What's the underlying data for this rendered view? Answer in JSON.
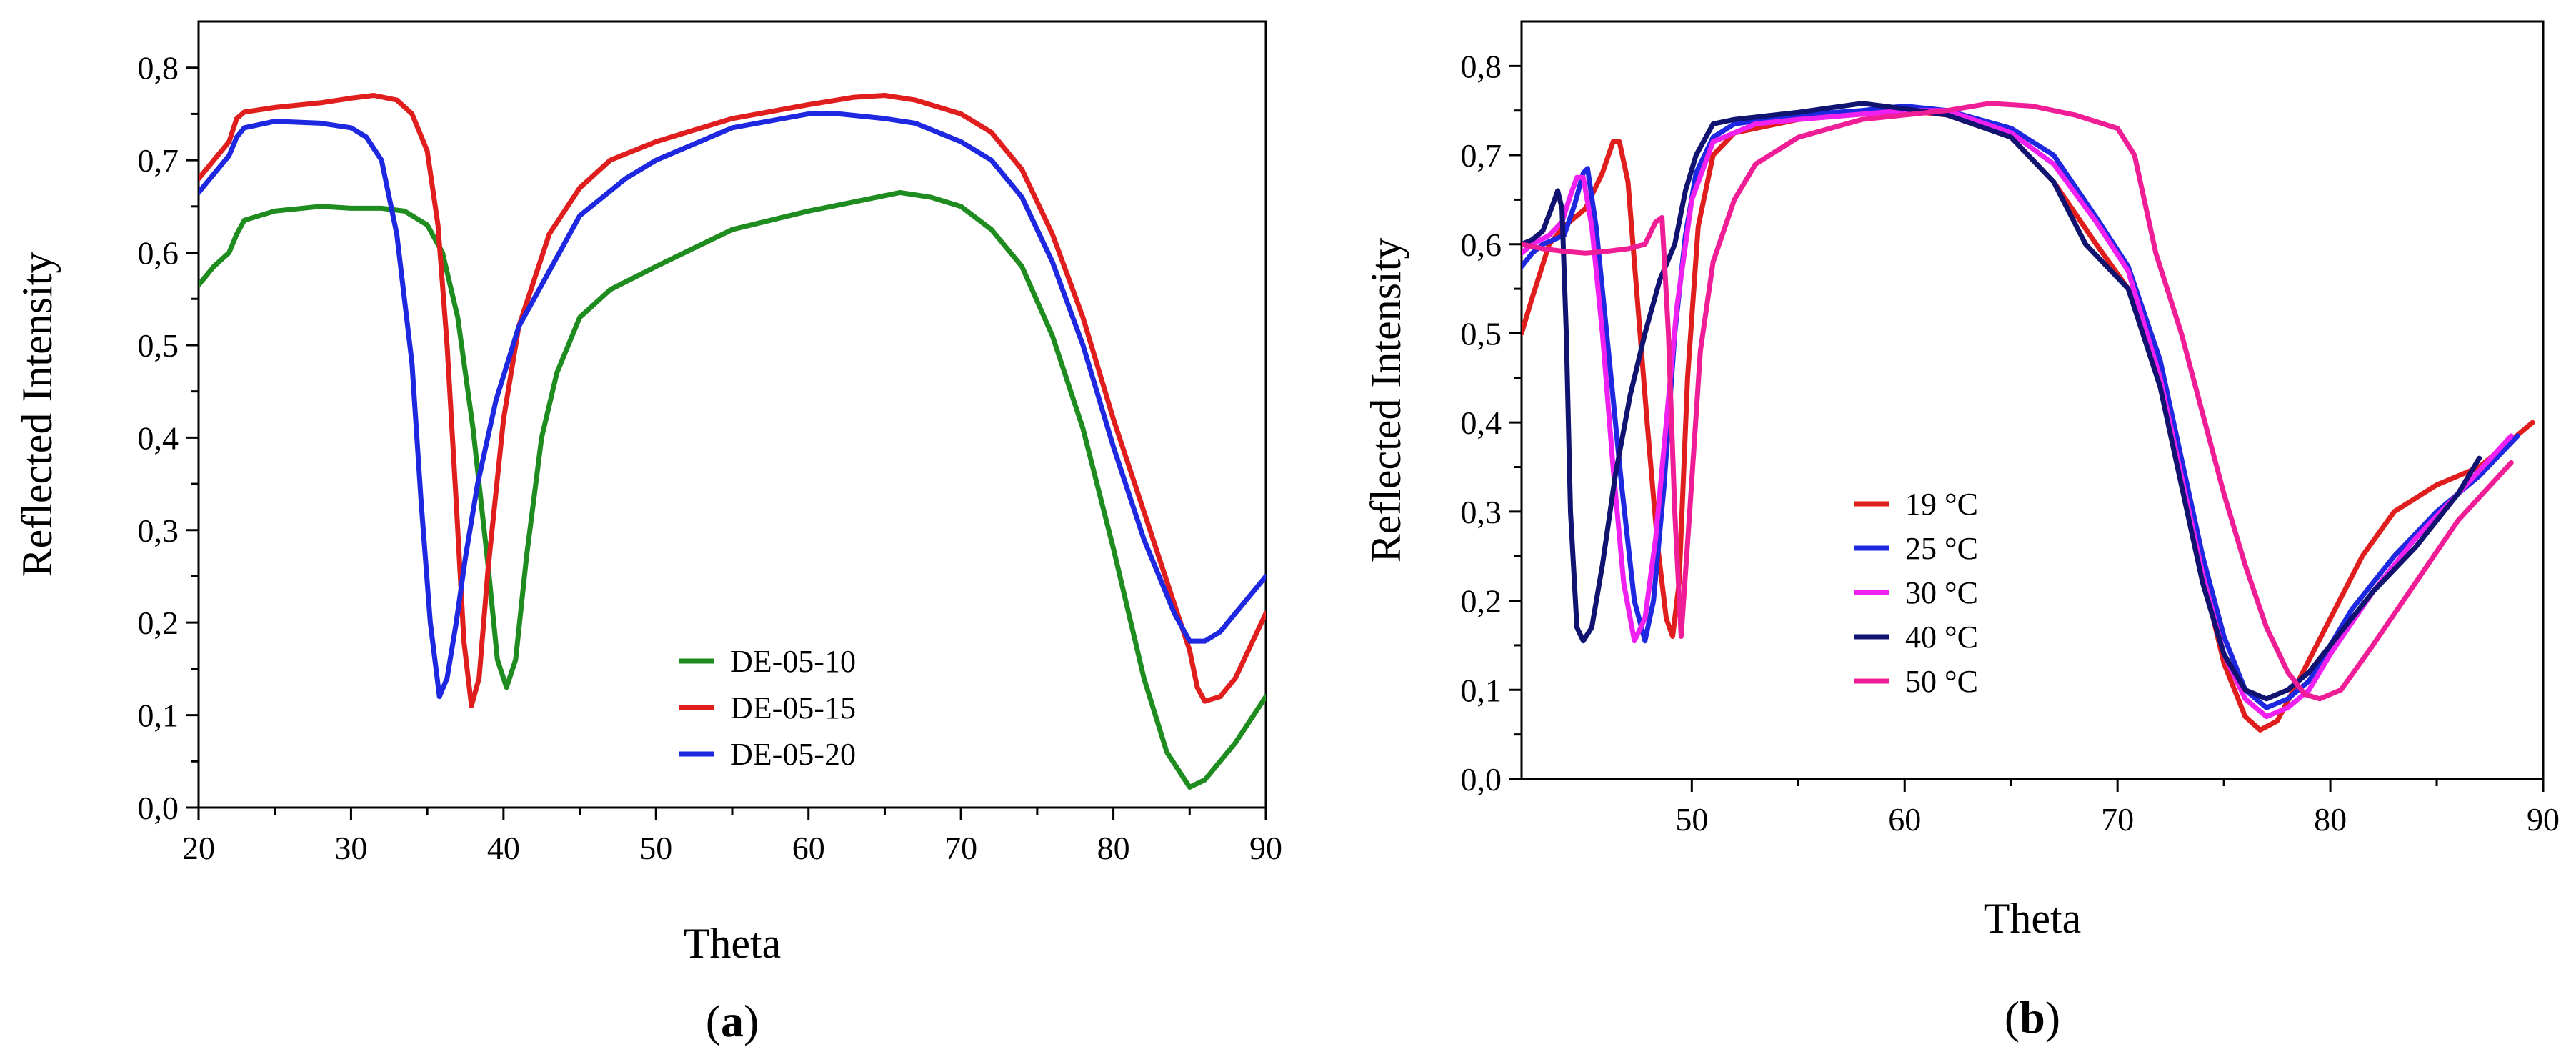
{
  "chart_data": [
    {
      "type": "line",
      "panel_label": "a",
      "xlabel": "Theta",
      "ylabel": "Reflected Intensity",
      "xlim": [
        20,
        90
      ],
      "ylim": [
        0.0,
        0.85
      ],
      "xticks": [
        20,
        30,
        40,
        50,
        60,
        70,
        80,
        90
      ],
      "yticks": [
        "0,0",
        "0,1",
        "0,2",
        "0,3",
        "0,4",
        "0,5",
        "0,6",
        "0,7",
        "0,8"
      ],
      "grid": false,
      "legend_position": "bottom-right",
      "series": [
        {
          "name": "DE-05-10",
          "color": "#1e8c1e",
          "x": [
            20,
            21,
            22,
            22.5,
            23,
            25,
            28,
            30,
            32,
            33.5,
            35,
            36,
            37,
            38,
            39,
            39.6,
            40.2,
            40.8,
            41.5,
            42.5,
            43.5,
            45,
            47,
            50,
            55,
            60,
            63,
            66,
            68,
            70,
            72,
            74,
            76,
            78,
            80,
            82,
            83.5,
            85,
            86,
            88,
            90
          ],
          "y": [
            0.565,
            0.585,
            0.6,
            0.62,
            0.635,
            0.645,
            0.65,
            0.648,
            0.648,
            0.645,
            0.63,
            0.6,
            0.53,
            0.41,
            0.26,
            0.16,
            0.13,
            0.16,
            0.27,
            0.4,
            0.47,
            0.53,
            0.56,
            0.585,
            0.625,
            0.645,
            0.655,
            0.665,
            0.66,
            0.65,
            0.625,
            0.585,
            0.51,
            0.41,
            0.28,
            0.14,
            0.06,
            0.022,
            0.03,
            0.07,
            0.12
          ]
        },
        {
          "name": "DE-05-15",
          "color": "#e01e1e",
          "x": [
            20,
            21,
            22,
            22.5,
            23,
            25,
            28,
            30,
            31.5,
            33,
            34,
            35,
            35.7,
            36.3,
            36.9,
            37.4,
            37.9,
            38.4,
            39,
            40,
            41,
            43,
            45,
            47,
            50,
            55,
            60,
            63,
            65,
            67,
            70,
            72,
            74,
            76,
            78,
            80,
            82,
            84,
            85,
            85.5,
            86,
            87,
            88,
            90
          ],
          "y": [
            0.68,
            0.7,
            0.72,
            0.745,
            0.752,
            0.757,
            0.762,
            0.767,
            0.77,
            0.765,
            0.75,
            0.71,
            0.63,
            0.5,
            0.33,
            0.18,
            0.11,
            0.14,
            0.26,
            0.42,
            0.52,
            0.62,
            0.67,
            0.7,
            0.72,
            0.745,
            0.76,
            0.768,
            0.77,
            0.765,
            0.75,
            0.73,
            0.69,
            0.62,
            0.53,
            0.42,
            0.32,
            0.22,
            0.17,
            0.13,
            0.115,
            0.12,
            0.14,
            0.21
          ]
        },
        {
          "name": "DE-05-20",
          "color": "#1e28e0",
          "x": [
            20,
            21,
            22,
            22.5,
            23,
            25,
            28,
            30,
            31,
            32,
            33,
            34,
            34.6,
            35.2,
            35.8,
            36.3,
            36.9,
            37.5,
            38.3,
            39.5,
            41,
            43,
            45,
            48,
            50,
            55,
            60,
            62,
            65,
            67,
            70,
            72,
            74,
            76,
            78,
            80,
            82,
            84,
            85,
            86,
            87,
            88,
            90
          ],
          "y": [
            0.665,
            0.685,
            0.705,
            0.725,
            0.735,
            0.742,
            0.74,
            0.735,
            0.725,
            0.7,
            0.62,
            0.48,
            0.33,
            0.2,
            0.12,
            0.14,
            0.2,
            0.27,
            0.35,
            0.44,
            0.52,
            0.58,
            0.64,
            0.68,
            0.7,
            0.735,
            0.75,
            0.75,
            0.745,
            0.74,
            0.72,
            0.7,
            0.66,
            0.59,
            0.5,
            0.39,
            0.29,
            0.21,
            0.18,
            0.18,
            0.19,
            0.21,
            0.25
          ]
        }
      ]
    },
    {
      "type": "line",
      "panel_label": "b",
      "xlabel": "Theta",
      "ylabel": "Reflected Intensity",
      "xlim": [
        42,
        90
      ],
      "ylim": [
        0.0,
        0.85
      ],
      "xticks": [
        50,
        60,
        70,
        80,
        90
      ],
      "yticks": [
        "0,0",
        "0,1",
        "0,2",
        "0,3",
        "0,4",
        "0,5",
        "0,6",
        "0,7",
        "0,8"
      ],
      "grid": false,
      "legend_position": "center-left",
      "series": [
        {
          "name": "19 °C",
          "color": "#e01e1e",
          "x": [
            42,
            42.5,
            43.3,
            44,
            45,
            45.8,
            46.3,
            46.6,
            47,
            47.4,
            47.9,
            48.4,
            48.8,
            49.1,
            49.4,
            49.8,
            50.3,
            51,
            52,
            55,
            60,
            62,
            65,
            67,
            69,
            70.5,
            72,
            73,
            74,
            75,
            76,
            76.7,
            77.5,
            78.5,
            80,
            81.5,
            83,
            85,
            87,
            88.5,
            89.5
          ],
          "y": [
            0.5,
            0.54,
            0.6,
            0.62,
            0.64,
            0.68,
            0.715,
            0.715,
            0.67,
            0.55,
            0.4,
            0.26,
            0.18,
            0.16,
            0.22,
            0.45,
            0.62,
            0.7,
            0.725,
            0.74,
            0.75,
            0.745,
            0.72,
            0.67,
            0.6,
            0.55,
            0.45,
            0.34,
            0.23,
            0.13,
            0.07,
            0.055,
            0.065,
            0.11,
            0.18,
            0.25,
            0.3,
            0.33,
            0.35,
            0.38,
            0.4
          ]
        },
        {
          "name": "25 °C",
          "color": "#1e28e0",
          "x": [
            42,
            42.5,
            43,
            44,
            44.5,
            44.9,
            45.1,
            45.5,
            46,
            46.7,
            47.3,
            47.8,
            48.2,
            48.7,
            49.2,
            49.7,
            50.2,
            51,
            52,
            55,
            58,
            60,
            62,
            65,
            67,
            69,
            70.5,
            72,
            73,
            74,
            75,
            76,
            77,
            78,
            79,
            80,
            81,
            83,
            85,
            87,
            88.8
          ],
          "y": [
            0.575,
            0.59,
            0.6,
            0.61,
            0.645,
            0.68,
            0.685,
            0.62,
            0.5,
            0.33,
            0.2,
            0.155,
            0.2,
            0.33,
            0.5,
            0.61,
            0.68,
            0.72,
            0.735,
            0.745,
            0.75,
            0.755,
            0.75,
            0.73,
            0.7,
            0.63,
            0.575,
            0.47,
            0.36,
            0.25,
            0.16,
            0.1,
            0.08,
            0.09,
            0.11,
            0.15,
            0.19,
            0.25,
            0.3,
            0.34,
            0.385
          ]
        },
        {
          "name": "30 °C",
          "color": "#f020f0",
          "x": [
            42,
            42.5,
            43.3,
            43.9,
            44.3,
            44.6,
            44.9,
            45.3,
            45.8,
            46.3,
            46.8,
            47.3,
            47.8,
            48.3,
            48.8,
            49.3,
            50,
            51,
            53,
            55,
            60,
            62,
            65,
            67,
            69,
            70.5,
            72,
            73,
            74,
            75,
            76,
            77,
            78,
            79,
            80,
            82,
            84,
            86,
            88.5
          ],
          "y": [
            0.59,
            0.6,
            0.61,
            0.625,
            0.655,
            0.675,
            0.675,
            0.62,
            0.5,
            0.35,
            0.22,
            0.155,
            0.18,
            0.27,
            0.4,
            0.53,
            0.65,
            0.715,
            0.735,
            0.74,
            0.75,
            0.75,
            0.725,
            0.69,
            0.625,
            0.57,
            0.45,
            0.34,
            0.23,
            0.14,
            0.09,
            0.07,
            0.08,
            0.1,
            0.14,
            0.21,
            0.27,
            0.32,
            0.385
          ]
        },
        {
          "name": "40 °C",
          "color": "#101470",
          "x": [
            42,
            42.5,
            43,
            43.4,
            43.7,
            43.9,
            44.1,
            44.3,
            44.6,
            44.9,
            45.3,
            45.8,
            46.4,
            47.1,
            47.8,
            48.5,
            49.2,
            49.7,
            50.2,
            51,
            52,
            55,
            58,
            60,
            62,
            65,
            67,
            68.5,
            70.5,
            72,
            73,
            74,
            75,
            76,
            77,
            78,
            79,
            80,
            82,
            84,
            86,
            87
          ],
          "y": [
            0.6,
            0.605,
            0.615,
            0.64,
            0.66,
            0.64,
            0.5,
            0.3,
            0.17,
            0.155,
            0.17,
            0.24,
            0.34,
            0.43,
            0.5,
            0.56,
            0.6,
            0.66,
            0.7,
            0.735,
            0.74,
            0.748,
            0.758,
            0.752,
            0.745,
            0.72,
            0.67,
            0.6,
            0.55,
            0.44,
            0.33,
            0.22,
            0.14,
            0.1,
            0.09,
            0.1,
            0.12,
            0.15,
            0.21,
            0.26,
            0.32,
            0.36
          ]
        },
        {
          "name": "50 °C",
          "color": "#f01e96",
          "x": [
            42,
            43,
            44,
            45,
            46,
            47,
            47.8,
            48.3,
            48.6,
            48.9,
            49.2,
            49.5,
            49.9,
            50.4,
            51,
            52,
            53,
            55,
            58,
            60,
            62,
            64,
            66,
            68,
            70,
            70.8,
            71.8,
            73,
            74,
            75,
            76,
            77,
            78,
            78.8,
            79.5,
            80.5,
            82,
            84,
            86,
            88.5
          ],
          "y": [
            0.6,
            0.595,
            0.592,
            0.59,
            0.592,
            0.595,
            0.6,
            0.625,
            0.63,
            0.5,
            0.3,
            0.16,
            0.3,
            0.48,
            0.58,
            0.65,
            0.69,
            0.72,
            0.74,
            0.745,
            0.75,
            0.758,
            0.755,
            0.745,
            0.73,
            0.7,
            0.59,
            0.5,
            0.41,
            0.32,
            0.24,
            0.17,
            0.12,
            0.095,
            0.09,
            0.1,
            0.15,
            0.22,
            0.29,
            0.355
          ]
        }
      ]
    }
  ]
}
